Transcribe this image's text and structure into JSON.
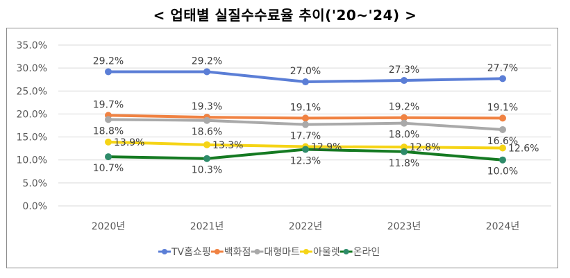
{
  "title": "< 업태별 실질수수료율 추이('20~'24) >",
  "chart_data": {
    "type": "line",
    "title": "< 업태별 실질수수료율 추이('20~'24) >",
    "xlabel": "",
    "ylabel": "",
    "categories": [
      "2020년",
      "2021년",
      "2022년",
      "2023년",
      "2024년"
    ],
    "ylim": [
      0,
      35
    ],
    "yticks": [
      "0.0%",
      "5.0%",
      "10.0%",
      "15.0%",
      "20.0%",
      "25.0%",
      "30.0%",
      "35.0%"
    ],
    "grid": true,
    "legend_position": "bottom",
    "series": [
      {
        "name": "TV홈쇼핑",
        "color": "#5B7ED6",
        "values": [
          29.2,
          29.2,
          27.0,
          27.3,
          27.7
        ],
        "labels": [
          "29.2%",
          "29.2%",
          "27.0%",
          "27.3%",
          "27.7%"
        ],
        "label_pos": "above"
      },
      {
        "name": "백화점",
        "color": "#F08242",
        "values": [
          19.7,
          19.3,
          19.1,
          19.2,
          19.1
        ],
        "labels": [
          "19.7%",
          "19.3%",
          "19.1%",
          "19.2%",
          "19.1%"
        ],
        "label_pos": "above"
      },
      {
        "name": "대형마트",
        "color": "#A9A9A9",
        "values": [
          18.8,
          18.6,
          17.7,
          18.0,
          16.6
        ],
        "labels": [
          "18.8%",
          "18.6%",
          "17.7%",
          "18.0%",
          "16.6%"
        ],
        "label_pos": "below"
      },
      {
        "name": "아울렛",
        "color": "#F5D416",
        "values": [
          13.9,
          13.3,
          12.9,
          12.8,
          12.6
        ],
        "labels": [
          "13.9%",
          "13.3%",
          "12.9%",
          "12.8%",
          "12.6%"
        ],
        "label_pos": "right"
      },
      {
        "name": "온라인",
        "color": "#157A22",
        "marker_color": "#2E8B6A",
        "values": [
          10.7,
          10.3,
          12.3,
          11.8,
          10.0
        ],
        "labels": [
          "10.7%",
          "10.3%",
          "12.3%",
          "11.8%",
          "10.0%"
        ],
        "label_pos": "below"
      }
    ]
  }
}
